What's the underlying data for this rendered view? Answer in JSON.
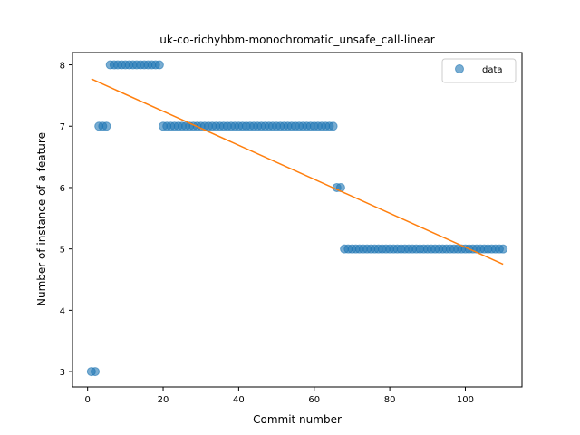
{
  "chart_data": {
    "type": "scatter",
    "title": "uk-co-richyhbm-monochromatic_unsafe_call-linear",
    "xlabel": "Commit number",
    "ylabel": "Number of instance of a feature",
    "xlim": [
      -4,
      115
    ],
    "ylim": [
      2.75,
      8.2
    ],
    "xticks": [
      0,
      20,
      40,
      60,
      80,
      100
    ],
    "yticks": [
      3,
      4,
      5,
      6,
      7,
      8
    ],
    "legend": {
      "placement": "top-right",
      "entries": [
        {
          "label": "data"
        }
      ]
    },
    "colors": {
      "points": "#1f77b4",
      "fit": "#ff7f0e"
    },
    "series": [
      {
        "name": "data",
        "kind": "scatter",
        "points": [
          [
            1,
            3
          ],
          [
            2,
            3
          ],
          [
            3,
            7
          ],
          [
            4,
            7
          ],
          [
            5,
            7
          ],
          [
            6,
            8
          ],
          [
            7,
            8
          ],
          [
            8,
            8
          ],
          [
            9,
            8
          ],
          [
            10,
            8
          ],
          [
            11,
            8
          ],
          [
            12,
            8
          ],
          [
            13,
            8
          ],
          [
            14,
            8
          ],
          [
            15,
            8
          ],
          [
            16,
            8
          ],
          [
            17,
            8
          ],
          [
            18,
            8
          ],
          [
            19,
            8
          ],
          [
            20,
            7
          ],
          [
            21,
            7
          ],
          [
            22,
            7
          ],
          [
            23,
            7
          ],
          [
            24,
            7
          ],
          [
            25,
            7
          ],
          [
            26,
            7
          ],
          [
            27,
            7
          ],
          [
            28,
            7
          ],
          [
            29,
            7
          ],
          [
            30,
            7
          ],
          [
            31,
            7
          ],
          [
            32,
            7
          ],
          [
            33,
            7
          ],
          [
            34,
            7
          ],
          [
            35,
            7
          ],
          [
            36,
            7
          ],
          [
            37,
            7
          ],
          [
            38,
            7
          ],
          [
            39,
            7
          ],
          [
            40,
            7
          ],
          [
            41,
            7
          ],
          [
            42,
            7
          ],
          [
            43,
            7
          ],
          [
            44,
            7
          ],
          [
            45,
            7
          ],
          [
            46,
            7
          ],
          [
            47,
            7
          ],
          [
            48,
            7
          ],
          [
            49,
            7
          ],
          [
            50,
            7
          ],
          [
            51,
            7
          ],
          [
            52,
            7
          ],
          [
            53,
            7
          ],
          [
            54,
            7
          ],
          [
            55,
            7
          ],
          [
            56,
            7
          ],
          [
            57,
            7
          ],
          [
            58,
            7
          ],
          [
            59,
            7
          ],
          [
            60,
            7
          ],
          [
            61,
            7
          ],
          [
            62,
            7
          ],
          [
            63,
            7
          ],
          [
            64,
            7
          ],
          [
            65,
            7
          ],
          [
            66,
            6
          ],
          [
            67,
            6
          ],
          [
            68,
            5
          ],
          [
            69,
            5
          ],
          [
            70,
            5
          ],
          [
            71,
            5
          ],
          [
            72,
            5
          ],
          [
            73,
            5
          ],
          [
            74,
            5
          ],
          [
            75,
            5
          ],
          [
            76,
            5
          ],
          [
            77,
            5
          ],
          [
            78,
            5
          ],
          [
            79,
            5
          ],
          [
            80,
            5
          ],
          [
            81,
            5
          ],
          [
            82,
            5
          ],
          [
            83,
            5
          ],
          [
            84,
            5
          ],
          [
            85,
            5
          ],
          [
            86,
            5
          ],
          [
            87,
            5
          ],
          [
            88,
            5
          ],
          [
            89,
            5
          ],
          [
            90,
            5
          ],
          [
            91,
            5
          ],
          [
            92,
            5
          ],
          [
            93,
            5
          ],
          [
            94,
            5
          ],
          [
            95,
            5
          ],
          [
            96,
            5
          ],
          [
            97,
            5
          ],
          [
            98,
            5
          ],
          [
            99,
            5
          ],
          [
            100,
            5
          ],
          [
            101,
            5
          ],
          [
            102,
            5
          ],
          [
            103,
            5
          ],
          [
            104,
            5
          ],
          [
            105,
            5
          ],
          [
            106,
            5
          ],
          [
            107,
            5
          ],
          [
            108,
            5
          ],
          [
            109,
            5
          ],
          [
            110,
            5
          ]
        ]
      },
      {
        "name": "",
        "kind": "line",
        "points": [
          [
            1,
            7.77
          ],
          [
            110,
            4.75
          ]
        ]
      }
    ]
  }
}
